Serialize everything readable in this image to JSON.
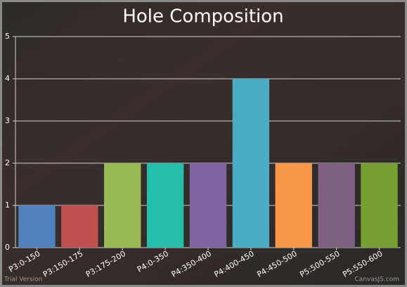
{
  "chart_data": {
    "type": "bar",
    "title": "Hole Composition",
    "categories": [
      "P3:0-150",
      "P3:150-175",
      "P3:175-200",
      "P4:0-350",
      "P4:350-400",
      "P4:400-450",
      "P4:450-500",
      "P5:500-550",
      "P5:550-600"
    ],
    "values": [
      1,
      1,
      2,
      2,
      2,
      4,
      2,
      2,
      2
    ],
    "colors": [
      "#4f81bc",
      "#c0504e",
      "#9bbb58",
      "#23bfaa",
      "#8064a1",
      "#4aacc5",
      "#f79647",
      "#7f6084",
      "#77a033"
    ],
    "ylim": [
      0,
      5
    ],
    "yticks": [
      0,
      1,
      2,
      3,
      4,
      5
    ],
    "grid": true,
    "annotations": [
      "Trial Version",
      "CanvasJS.com"
    ]
  }
}
